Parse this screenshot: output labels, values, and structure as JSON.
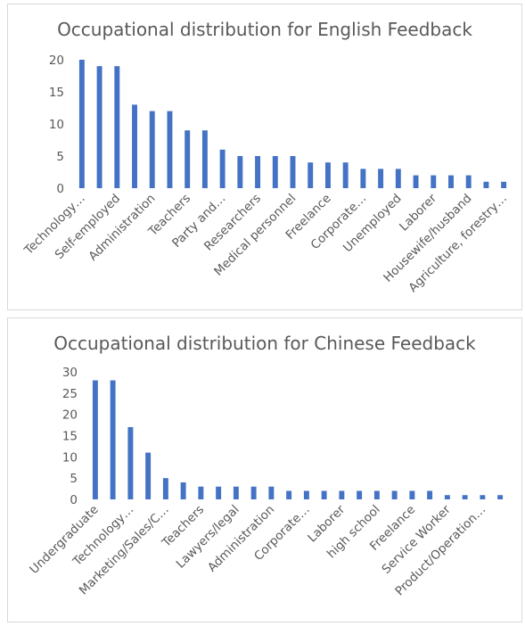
{
  "chart_data": [
    {
      "type": "bar",
      "title": "Occupational distribution for English Feedback",
      "xlabel": "",
      "ylabel": "",
      "ylim": [
        0,
        20
      ],
      "yticks": [
        "0",
        "5",
        "10",
        "15",
        "20"
      ],
      "grid": false,
      "legend": "none",
      "bar_color": "#4472C4",
      "values": [
        20,
        19,
        19,
        13,
        12,
        12,
        9,
        9,
        6,
        5,
        5,
        5,
        5,
        4,
        4,
        4,
        3,
        3,
        3,
        2,
        2,
        2,
        2,
        1,
        1
      ],
      "tick_labels": [
        {
          "index": 0,
          "text": "Technology…"
        },
        {
          "index": 2,
          "text": "Self-employed"
        },
        {
          "index": 4,
          "text": "Administration"
        },
        {
          "index": 6,
          "text": "Teachers"
        },
        {
          "index": 8,
          "text": "Party and…"
        },
        {
          "index": 10,
          "text": "Researchers"
        },
        {
          "index": 12,
          "text": "Medical personnel"
        },
        {
          "index": 14,
          "text": "Freelance"
        },
        {
          "index": 16,
          "text": "Corporate…"
        },
        {
          "index": 18,
          "text": "Unemployed"
        },
        {
          "index": 20,
          "text": "Laborer"
        },
        {
          "index": 22,
          "text": "Housewife/husband"
        },
        {
          "index": 24,
          "text": "Agriculture, forestry…"
        }
      ]
    },
    {
      "type": "bar",
      "title": "Occupational distribution for Chinese Feedback",
      "xlabel": "",
      "ylabel": "",
      "ylim": [
        0,
        30
      ],
      "yticks": [
        "0",
        "5",
        "10",
        "15",
        "20",
        "25",
        "30"
      ],
      "grid": false,
      "legend": "none",
      "bar_color": "#4472C4",
      "values": [
        28,
        28,
        17,
        11,
        5,
        4,
        3,
        3,
        3,
        3,
        3,
        2,
        2,
        2,
        2,
        2,
        2,
        2,
        2,
        2,
        1,
        1,
        1,
        1
      ],
      "tick_labels": [
        {
          "index": 0,
          "text": "Undergraduate"
        },
        {
          "index": 2,
          "text": "Technology…"
        },
        {
          "index": 4,
          "text": "Marketing/Sales/C…"
        },
        {
          "index": 6,
          "text": "Teachers"
        },
        {
          "index": 8,
          "text": "Lawyers/legal"
        },
        {
          "index": 10,
          "text": "Administration"
        },
        {
          "index": 12,
          "text": "Corporate…"
        },
        {
          "index": 14,
          "text": "Laborer"
        },
        {
          "index": 16,
          "text": "high school"
        },
        {
          "index": 18,
          "text": "Freelance"
        },
        {
          "index": 20,
          "text": "Service Worker"
        },
        {
          "index": 22,
          "text": "Product/Operation…"
        }
      ]
    }
  ]
}
